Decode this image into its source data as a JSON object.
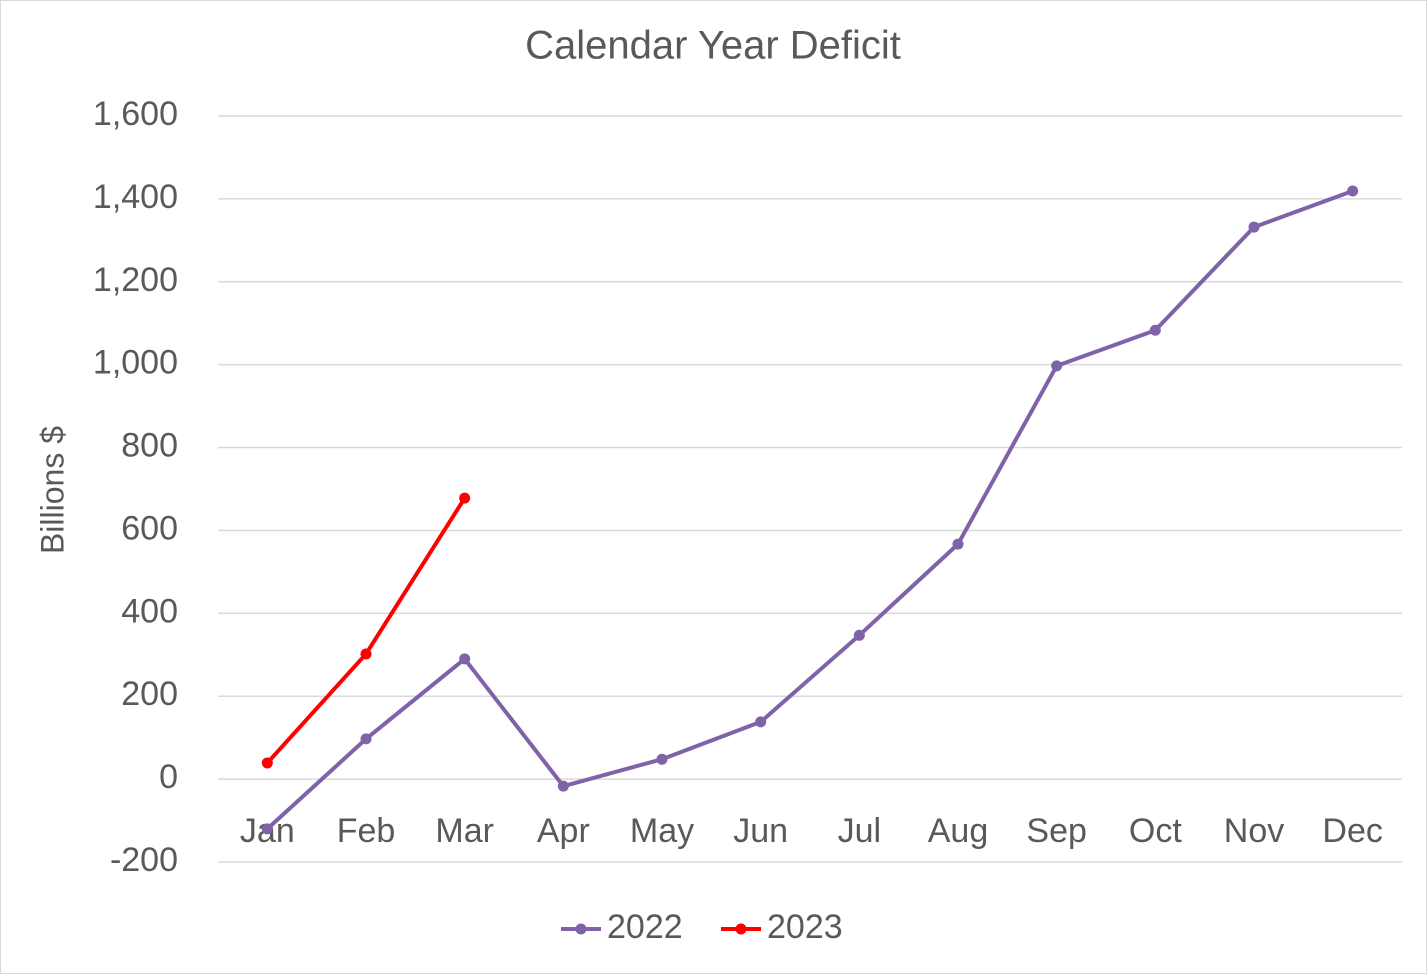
{
  "chart_data": {
    "type": "line",
    "title": "Calendar Year Deficit",
    "y_label": "Billions $",
    "categories": [
      "Jan",
      "Feb",
      "Mar",
      "Apr",
      "May",
      "Jun",
      "Jul",
      "Aug",
      "Sep",
      "Oct",
      "Nov",
      "Dec"
    ],
    "series": [
      {
        "name": "2022",
        "color": "#7f62a8",
        "values": [
          -120,
          97,
          290,
          -17,
          48,
          138,
          347,
          567,
          997,
          1083,
          1332,
          1419
        ]
      },
      {
        "name": "2023",
        "color": "#ff0000",
        "values": [
          39,
          302,
          678,
          null,
          null,
          null,
          null,
          null,
          null,
          null,
          null,
          null
        ]
      }
    ],
    "ylim": [
      -200,
      1600
    ],
    "yticks": [
      -200,
      0,
      200,
      400,
      600,
      800,
      {
        "value": 1000,
        "label": "1,000"
      },
      {
        "value": 1200,
        "label": "1,200"
      },
      {
        "value": 1400,
        "label": "1,400"
      },
      {
        "value": 1600,
        "label": "1,600"
      }
    ],
    "grid": true,
    "legend": "bottom"
  }
}
